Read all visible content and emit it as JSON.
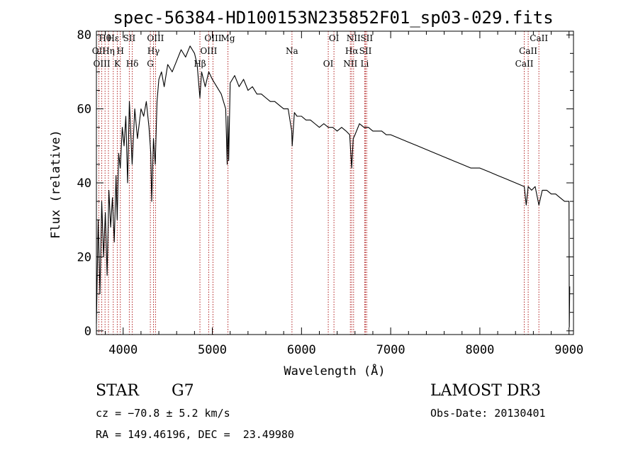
{
  "chart_data": {
    "type": "line",
    "title": "spec-56384-HD100153N235852F01_sp03-029.fits",
    "xlabel": "Wavelength (Å)",
    "ylabel": "Flux (relative)",
    "xlim": [
      3700,
      9050
    ],
    "ylim": [
      -1,
      81
    ],
    "xticks": [
      4000,
      5000,
      6000,
      7000,
      8000,
      9000
    ],
    "yticks": [
      0,
      20,
      40,
      60,
      80
    ],
    "grid": false,
    "series": [
      {
        "name": "flux",
        "color": "#000000",
        "x": [
          3700,
          3720,
          3740,
          3760,
          3780,
          3800,
          3820,
          3840,
          3860,
          3880,
          3900,
          3920,
          3933,
          3950,
          3968,
          3990,
          4010,
          4030,
          4050,
          4070,
          4101,
          4130,
          4160,
          4200,
          4230,
          4260,
          4290,
          4310,
          4320,
          4340,
          4360,
          4380,
          4400,
          4430,
          4460,
          4500,
          4550,
          4600,
          4650,
          4700,
          4750,
          4800,
          4830,
          4861,
          4880,
          4920,
          4960,
          5000,
          5050,
          5100,
          5150,
          5167,
          5175,
          5183,
          5200,
          5250,
          5300,
          5350,
          5400,
          5450,
          5500,
          5550,
          5600,
          5650,
          5700,
          5750,
          5800,
          5850,
          5890,
          5896,
          5920,
          5950,
          6000,
          6050,
          6100,
          6150,
          6200,
          6250,
          6300,
          6350,
          6400,
          6450,
          6500,
          6540,
          6563,
          6580,
          6600,
          6650,
          6700,
          6750,
          6800,
          6850,
          6900,
          6950,
          7000,
          7100,
          7200,
          7300,
          7400,
          7500,
          7600,
          7700,
          7800,
          7900,
          8000,
          8100,
          8200,
          8300,
          8400,
          8498,
          8520,
          8542,
          8580,
          8620,
          8662,
          8700,
          8750,
          8800,
          8850,
          8900,
          8950,
          8990,
          9000,
          9003,
          9008
        ],
        "values": [
          2,
          30,
          10,
          35,
          20,
          32,
          15,
          38,
          28,
          36,
          24,
          42,
          30,
          48,
          44,
          55,
          50,
          58,
          40,
          62,
          45,
          60,
          52,
          60,
          58,
          62,
          55,
          48,
          35,
          52,
          45,
          62,
          68,
          70,
          66,
          72,
          70,
          73,
          76,
          74,
          77,
          75,
          72,
          63,
          70,
          66,
          70,
          68,
          66,
          64,
          60,
          45,
          58,
          46,
          67,
          69,
          66,
          68,
          65,
          66,
          64,
          64,
          63,
          62,
          62,
          61,
          60,
          60,
          54,
          50,
          59,
          58,
          58,
          57,
          57,
          56,
          55,
          56,
          55,
          55,
          54,
          55,
          54,
          53,
          44,
          52,
          53,
          56,
          55,
          55,
          54,
          54,
          54,
          53,
          53,
          52,
          51,
          50,
          49,
          48,
          47,
          46,
          45,
          44,
          44,
          43,
          42,
          41,
          40,
          39,
          34,
          39,
          38,
          39,
          34,
          38,
          38,
          37,
          37,
          36,
          35,
          35,
          35,
          1,
          12
        ]
      }
    ],
    "lines": [
      {
        "labels": [
          "Hθ"
        ],
        "x": 3797
      },
      {
        "labels": [
          "OII"
        ],
        "x": 3727
      },
      {
        "labels": [
          "OIII"
        ],
        "x": 3760
      },
      {
        "labels": [
          "Hε"
        ],
        "x": 3889
      },
      {
        "labels": [
          "Hη"
        ],
        "x": 3835
      },
      {
        "labels": [
          "K"
        ],
        "x": 3934
      },
      {
        "labels": [
          "SII"
        ],
        "x": 4069
      },
      {
        "labels": [
          "H"
        ],
        "x": 3968
      },
      {
        "labels": [
          "Hδ"
        ],
        "x": 4102
      },
      {
        "labels": [
          "OIII"
        ],
        "x": 4363
      },
      {
        "labels": [
          "Hγ"
        ],
        "x": 4340
      },
      {
        "labels": [
          "G"
        ],
        "x": 4305
      },
      {
        "labels": [
          "OIII"
        ],
        "x": 5007
      },
      {
        "labels": [
          "OIII"
        ],
        "x": 4959
      },
      {
        "labels": [
          "Hβ"
        ],
        "x": 4861
      },
      {
        "labels": [
          "Mg"
        ],
        "x": 5175
      },
      {
        "labels": [
          "Na"
        ],
        "x": 5893
      },
      {
        "labels": [
          "OI"
        ],
        "x": 6300
      },
      {
        "labels": [
          "OI"
        ],
        "x": 6364
      },
      {
        "labels": [
          "Hα"
        ],
        "x": 6563
      },
      {
        "labels": [
          "NII"
        ],
        "x": 6548
      },
      {
        "labels": [
          "NII"
        ],
        "x": 6584
      },
      {
        "labels": [
          "SII"
        ],
        "x": 6717
      },
      {
        "labels": [
          "Li"
        ],
        "x": 6708
      },
      {
        "labels": [
          "SII"
        ],
        "x": 6731
      },
      {
        "labels": [
          "CaII"
        ],
        "x": 8542
      },
      {
        "labels": [
          "CaII"
        ],
        "x": 8498
      },
      {
        "labels": [
          "CaII"
        ],
        "x": 8662
      }
    ]
  },
  "info": {
    "object_class": "STAR",
    "subclass": "G7",
    "survey": "LAMOST DR3",
    "cz": "cz = −70.8 ± 5.2 km/s",
    "obs_date": "Obs-Date: 20130401",
    "coords": "RA = 149.46196, DEC =  23.49980"
  },
  "colors": {
    "line_marker": "#b22222",
    "spectrum": "#000000"
  }
}
